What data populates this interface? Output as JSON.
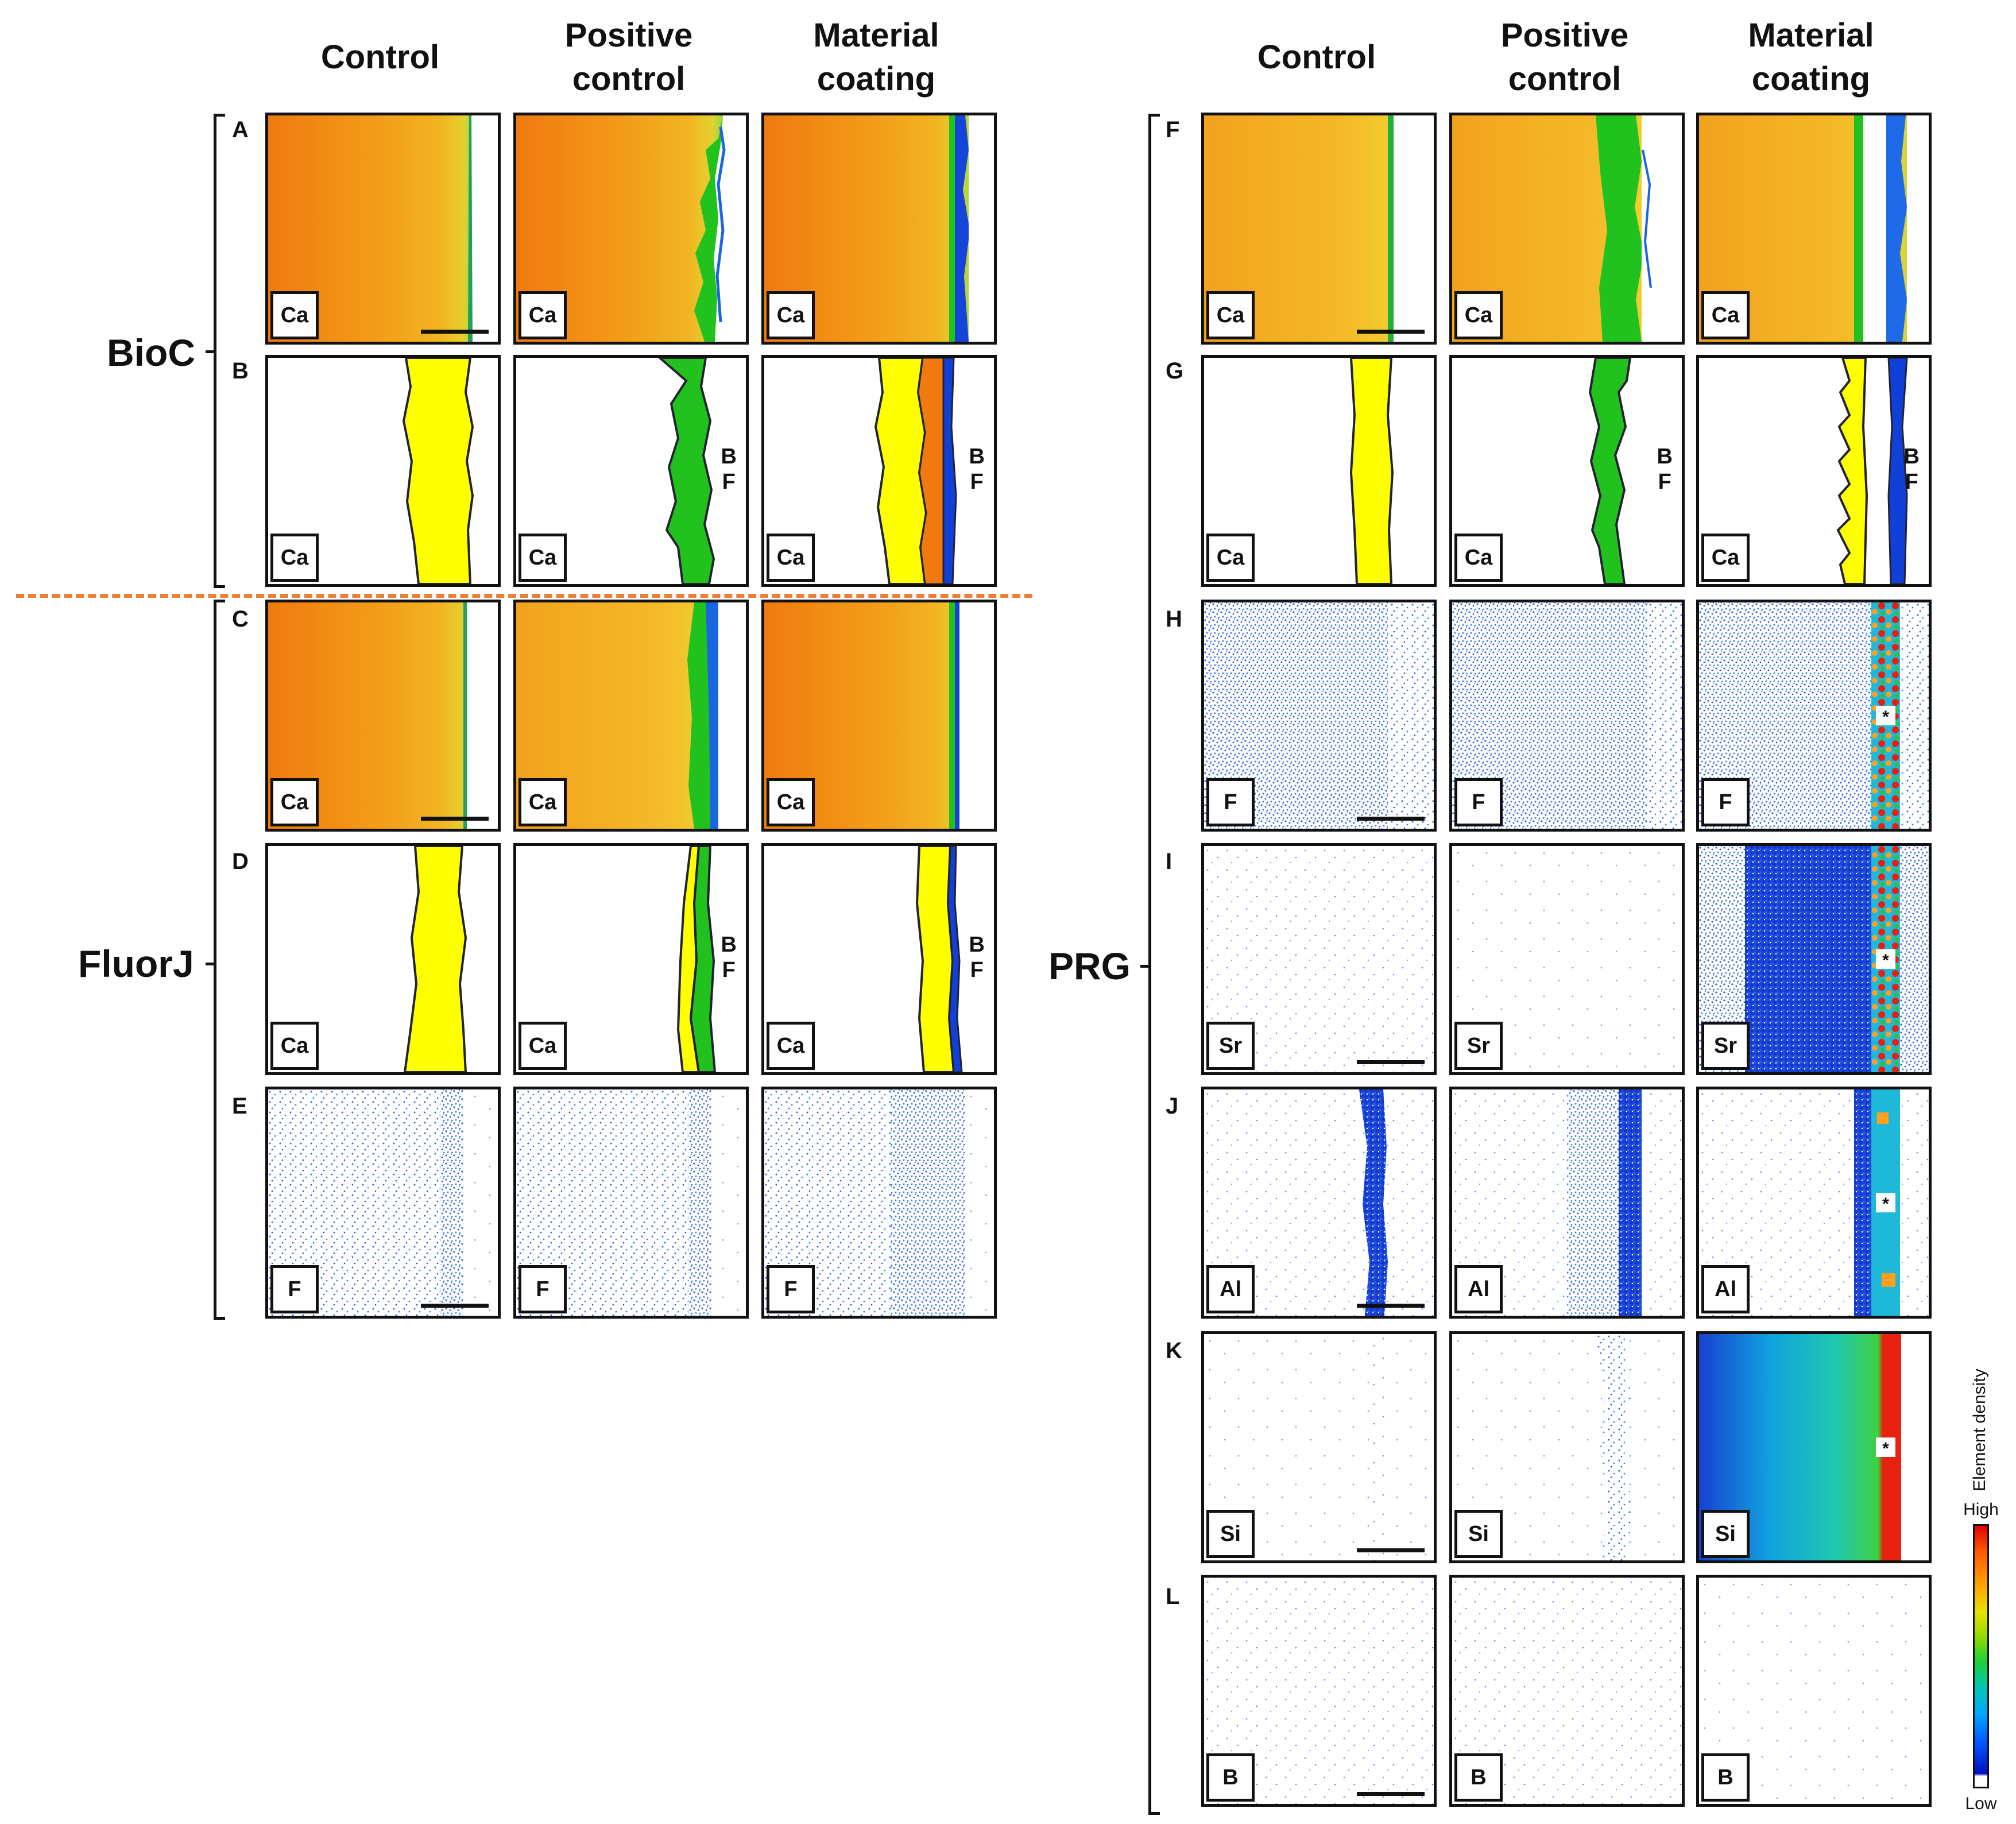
{
  "column_headers": {
    "left": [
      "Control",
      "Positive\ncontrol",
      "Material\ncoating"
    ],
    "right": [
      "Control",
      "Positive\ncontrol",
      "Material\ncoating"
    ]
  },
  "groups": {
    "bioc": "BioC",
    "fluorj": "FluorJ",
    "prg": "PRG"
  },
  "rows": {
    "left": [
      "A",
      "B",
      "C",
      "D",
      "E"
    ],
    "right": [
      "F",
      "G",
      "H",
      "I",
      "J",
      "K",
      "L"
    ]
  },
  "element_tags": {
    "A": [
      "Ca",
      "Ca",
      "Ca"
    ],
    "B": [
      "Ca",
      "Ca",
      "Ca"
    ],
    "C": [
      "Ca",
      "Ca",
      "Ca"
    ],
    "D": [
      "Ca",
      "Ca",
      "Ca"
    ],
    "E": [
      "F",
      "F",
      "F"
    ],
    "F": [
      "Ca",
      "Ca",
      "Ca"
    ],
    "G": [
      "Ca",
      "Ca",
      "Ca"
    ],
    "H": [
      "F",
      "F",
      "F"
    ],
    "I": [
      "Sr",
      "Sr",
      "Sr"
    ],
    "J": [
      "Al",
      "Al",
      "Al"
    ],
    "K": [
      "Si",
      "Si",
      "Si"
    ],
    "L": [
      "B",
      "B",
      "B"
    ]
  },
  "biofilm_label": "B\nF",
  "asterisk": "*",
  "legend": {
    "title": "Element density",
    "high": "High",
    "low": "Low"
  },
  "colors": {
    "enamel_orange": "#f07a10",
    "enamel_yellow": "#f2b422",
    "schematic_yellow": "#ffff00",
    "biofilm_green": "#22c21e",
    "coating_blue": "#1040d8",
    "coating_orange": "#f07a10",
    "separator": "#e87f3a"
  }
}
